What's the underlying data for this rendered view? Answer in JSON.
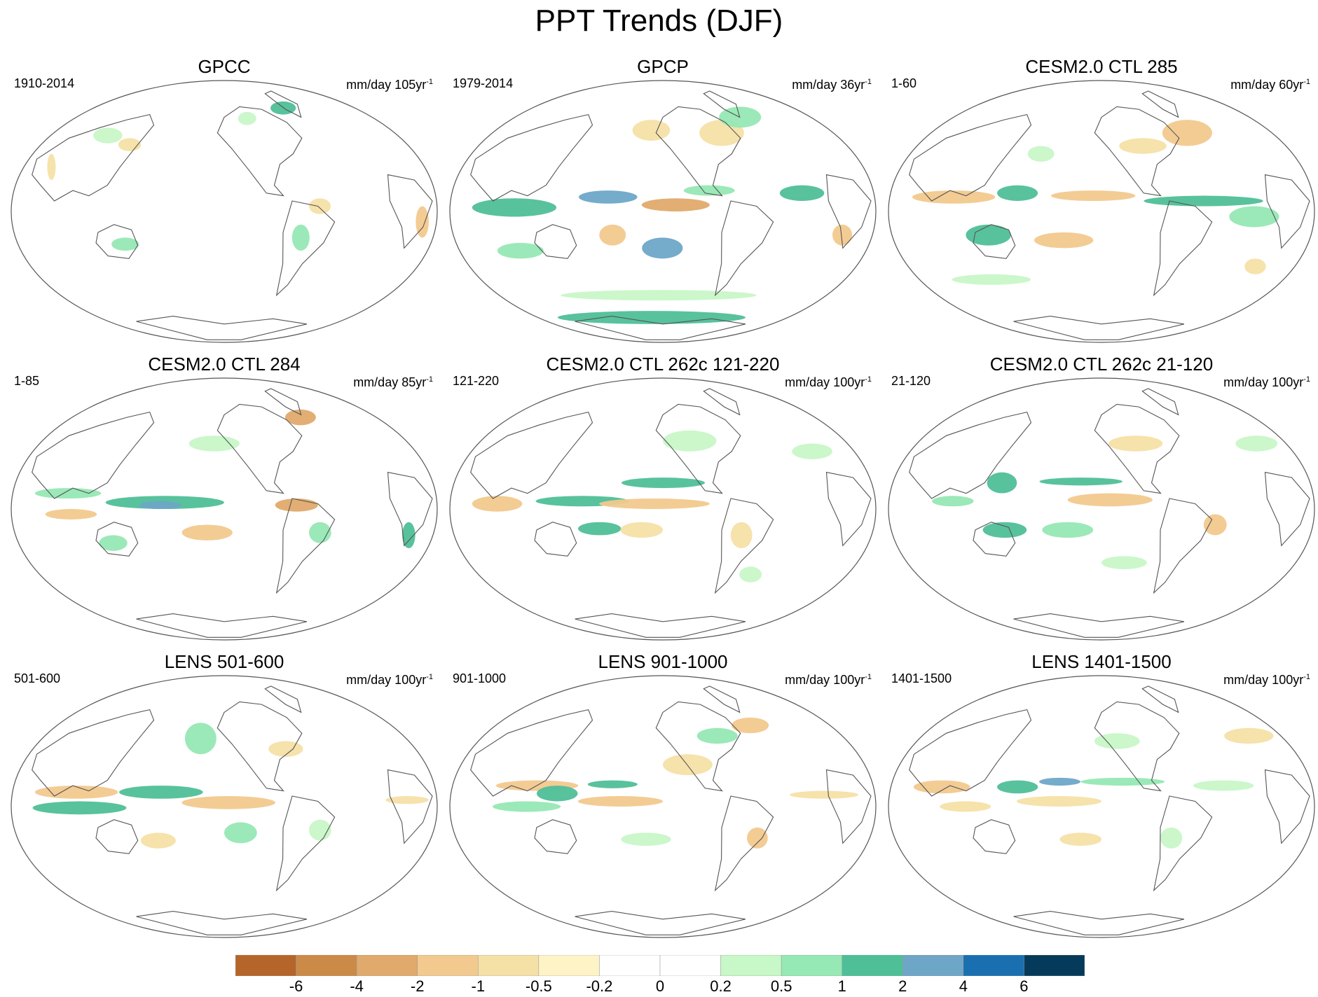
{
  "title": "PPT Trends (DJF)",
  "panels": [
    {
      "title": "GPCC",
      "period": "1910-2014",
      "units": "mm/day 105yr",
      "units_exp": "-1",
      "pattern": "gpcc"
    },
    {
      "title": "GPCP",
      "period": "1979-2014",
      "units": "mm/day 36yr",
      "units_exp": "-1",
      "pattern": "gpcp"
    },
    {
      "title": "CESM2.0 CTL 285",
      "period": "1-60",
      "units": "mm/day 60yr",
      "units_exp": "-1",
      "pattern": "ctl285"
    },
    {
      "title": "CESM2.0 CTL 284",
      "period": "1-85",
      "units": "mm/day 85yr",
      "units_exp": "-1",
      "pattern": "ctl284"
    },
    {
      "title": "CESM2.0 CTL 262c 121-220",
      "period": "121-220",
      "units": "mm/day 100yr",
      "units_exp": "-1",
      "pattern": "ctl262a"
    },
    {
      "title": "CESM2.0 CTL 262c 21-120",
      "period": "21-120",
      "units": "mm/day 100yr",
      "units_exp": "-1",
      "pattern": "ctl262b"
    },
    {
      "title": "LENS 501-600",
      "period": "501-600",
      "units": "mm/day 100yr",
      "units_exp": "-1",
      "pattern": "lens1"
    },
    {
      "title": "LENS 901-1000",
      "period": "901-1000",
      "units": "mm/day 100yr",
      "units_exp": "-1",
      "pattern": "lens2"
    },
    {
      "title": "LENS 1401-1500",
      "period": "1401-1500",
      "units": "mm/day 100yr",
      "units_exp": "-1",
      "pattern": "lens3"
    }
  ],
  "colorbar": {
    "colors": [
      "#b5652a",
      "#cc8a48",
      "#e0aa6c",
      "#f2c98e",
      "#f5e0a6",
      "#fdf3c6",
      "#ffffff",
      "#ffffff",
      "#c8f7c8",
      "#96e8b4",
      "#4fbf98",
      "#6ea6c8",
      "#1a6fb0",
      "#053a5a"
    ],
    "tick_labels": [
      "-6",
      "-4",
      "-2",
      "-1",
      "-0.5",
      "-0.2",
      "0",
      "0.2",
      "0.5",
      "1",
      "2",
      "4",
      "6"
    ]
  },
  "palette": {
    "dry_strong": "#e0aa6c",
    "dry_mod": "#f2c98e",
    "dry_weak": "#f5e0a6",
    "wet_weak": "#c8f7c8",
    "wet_mod": "#96e8b4",
    "wet_strong": "#4fbf98",
    "wet_vstrong": "#6ea6c8",
    "wet_extreme": "#1a6fb0",
    "coast": "#555555"
  }
}
